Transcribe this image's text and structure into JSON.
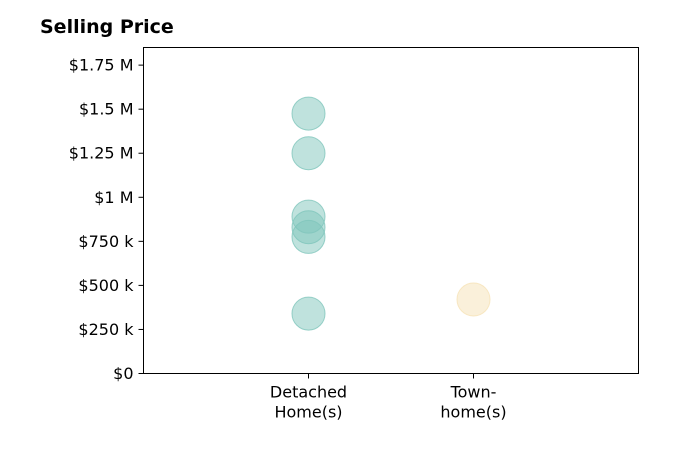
{
  "chart_data": {
    "type": "scatter",
    "title": "Selling Price",
    "xlabel": "",
    "ylabel": "",
    "categories": [
      [
        "Detached",
        "Home(s)"
      ],
      [
        "Town-",
        "home(s)"
      ]
    ],
    "y_ticks": [
      {
        "value": 0,
        "label": "$0"
      },
      {
        "value": 250000,
        "label": "$250 k"
      },
      {
        "value": 500000,
        "label": "$500 k"
      },
      {
        "value": 750000,
        "label": "$750 k"
      },
      {
        "value": 1000000,
        "label": "$1 M"
      },
      {
        "value": 1250000,
        "label": "$1.25 M"
      },
      {
        "value": 1500000,
        "label": "$1.5 M"
      },
      {
        "value": 1750000,
        "label": "$1.75 M"
      }
    ],
    "ylim": [
      0,
      1850000
    ],
    "xlim": [
      -1,
      2
    ],
    "series": [
      {
        "category_index": 0,
        "color": "#7fc6bc",
        "values": [
          1475000,
          1250000,
          890000,
          830000,
          775000,
          340000
        ]
      },
      {
        "category_index": 1,
        "color": "#f6e2b6",
        "values": [
          420000
        ]
      }
    ],
    "grid": false,
    "legend": "none"
  }
}
